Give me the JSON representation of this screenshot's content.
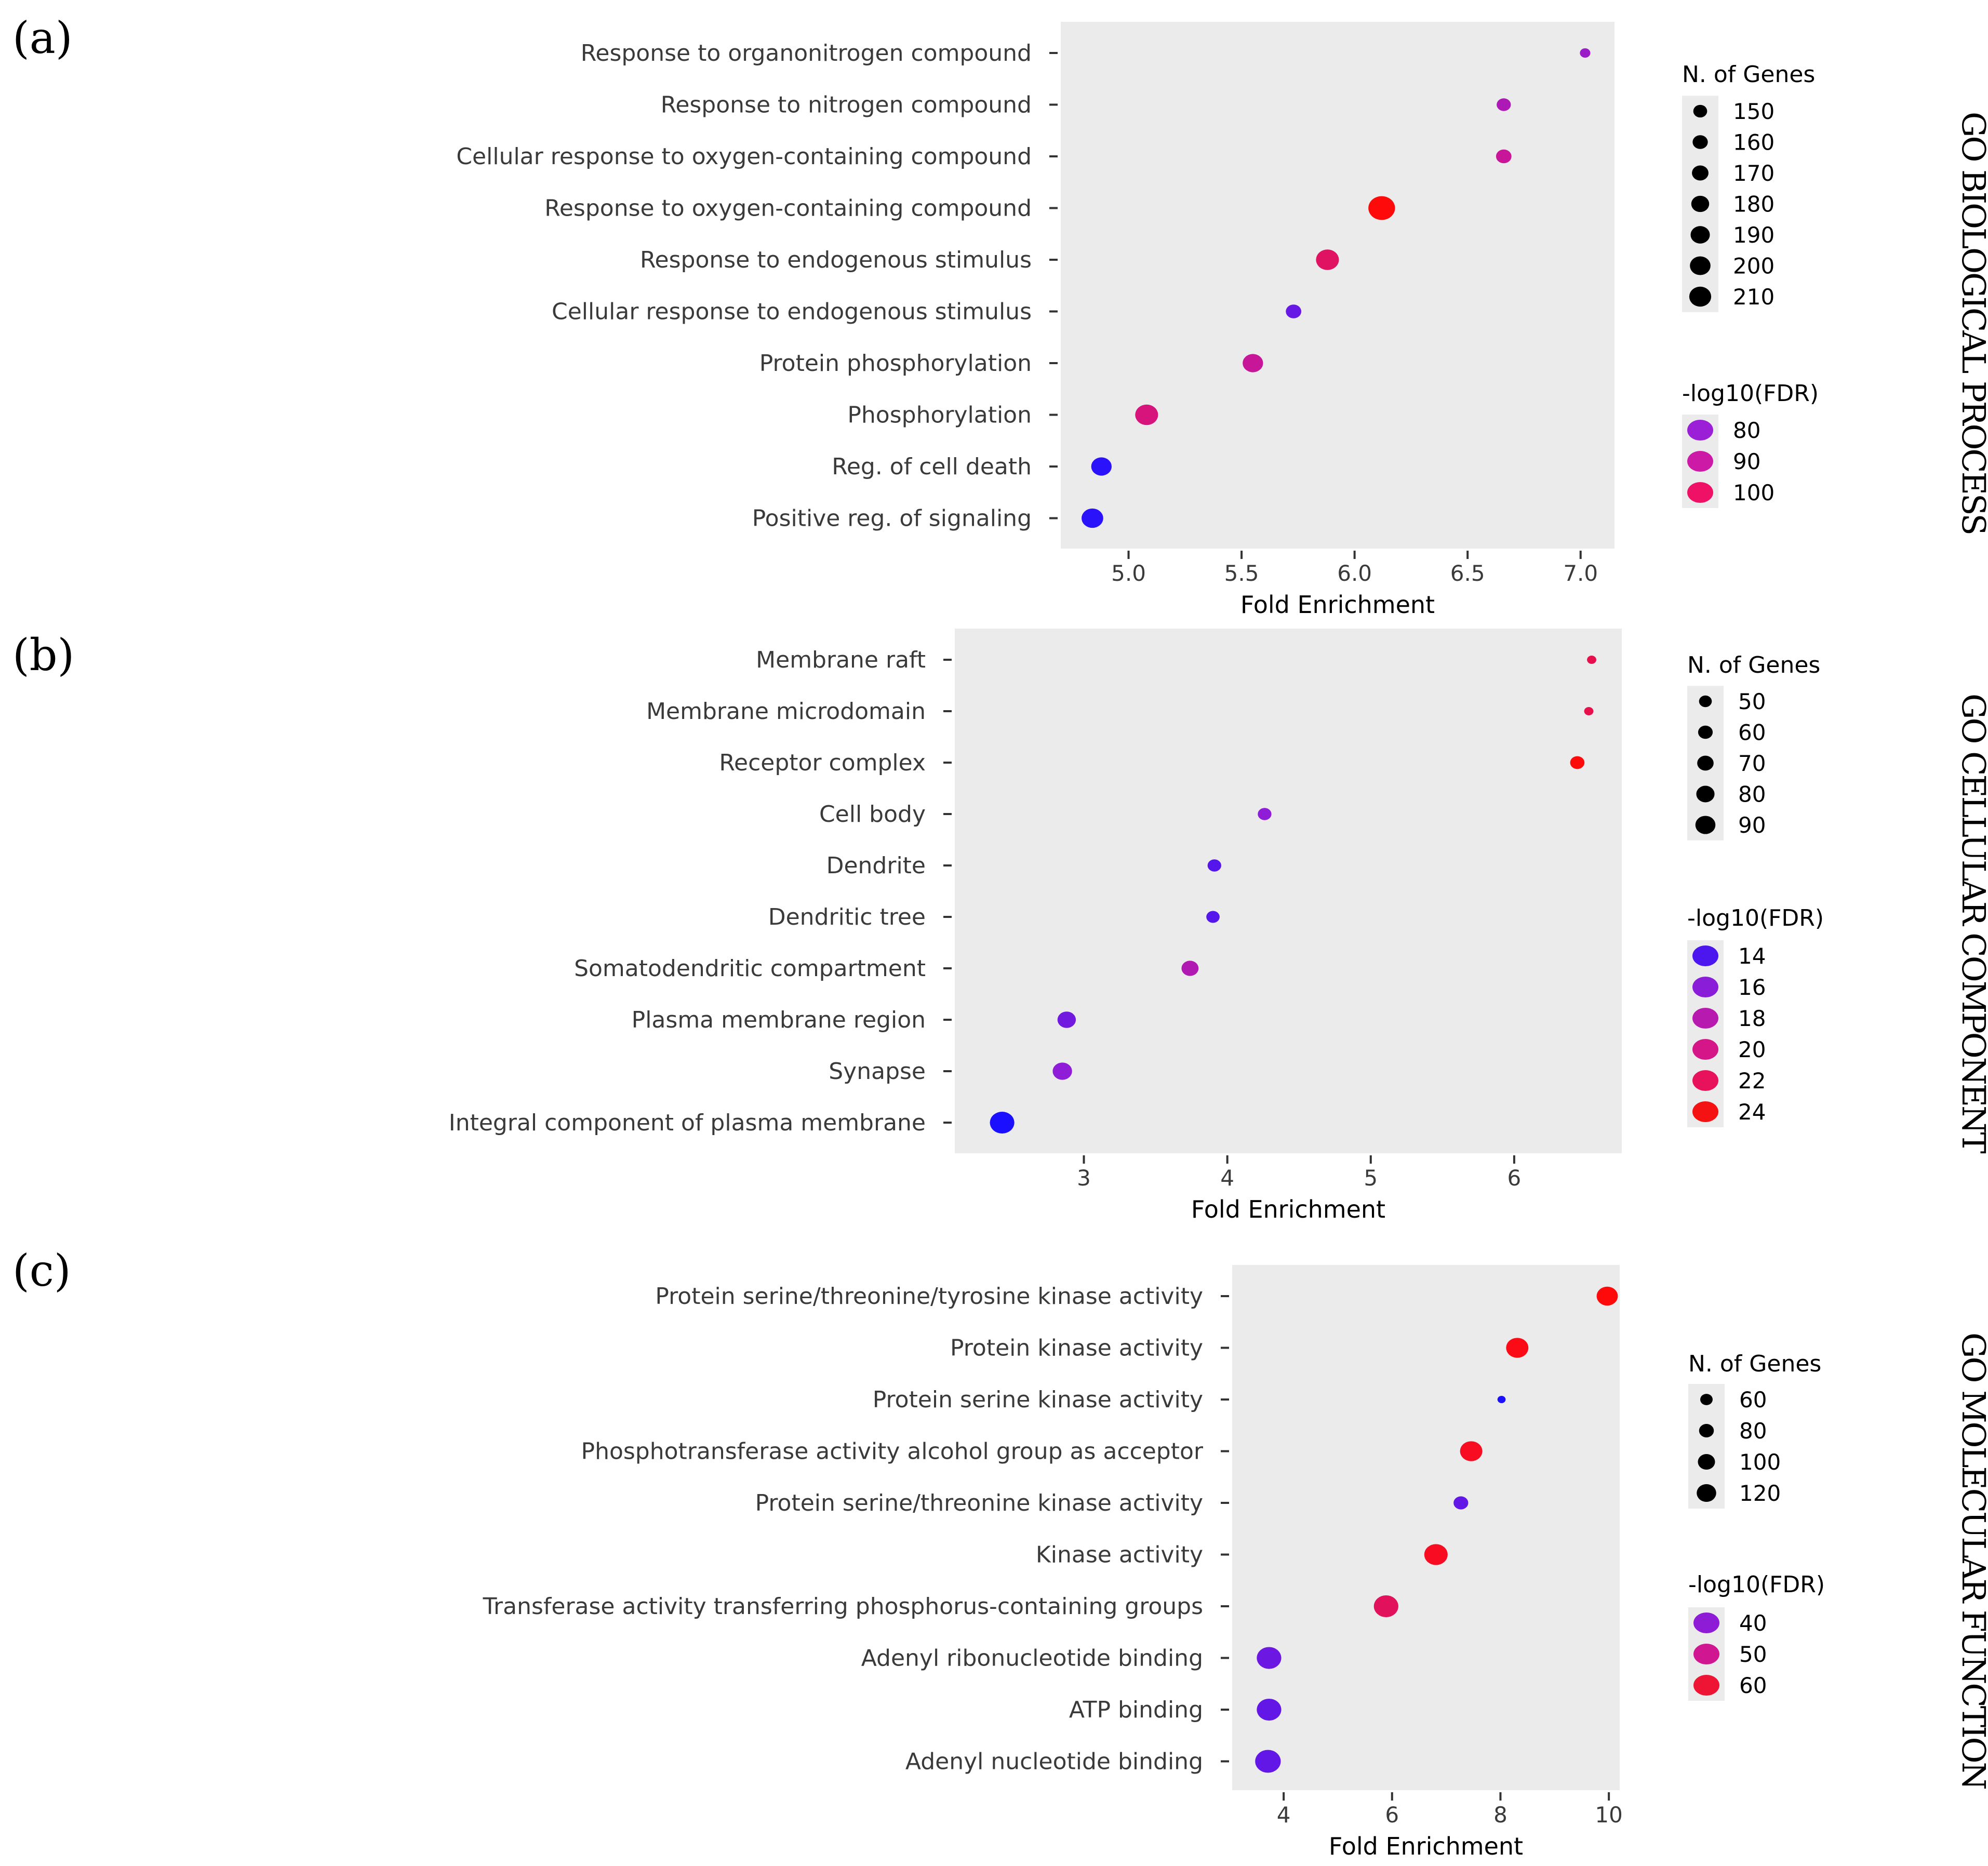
{
  "chart_data": [
    {
      "type": "scatter",
      "panel_label": "(a)",
      "side_title": "GO BIOLOGICAL PROCESS",
      "xlabel": "Fold Enrichment",
      "xlim": [
        4.7,
        7.15
      ],
      "xticks": [
        5.0,
        5.5,
        6.0,
        6.5,
        7.0
      ],
      "xtick_labels": [
        "5.0",
        "5.5",
        "6.0",
        "6.5",
        "7.0"
      ],
      "categories": [
        "Response to organonitrogen compound",
        "Response to nitrogen compound",
        "Cellular response to oxygen-containing compound",
        "Response to oxygen-containing compound",
        "Response to endogenous stimulus",
        "Cellular response to endogenous stimulus",
        "Protein phosphorylation",
        "Phosphorylation",
        "Reg. of cell death",
        "Positive reg. of signaling"
      ],
      "fold_enrichment": [
        7.02,
        6.66,
        6.66,
        6.12,
        5.88,
        5.73,
        5.55,
        5.08,
        4.88,
        4.84
      ],
      "n_genes": [
        140,
        155,
        160,
        205,
        190,
        160,
        180,
        190,
        180,
        185
      ],
      "neg_log10_fdr": [
        78,
        82,
        88,
        105,
        95,
        70,
        88,
        92,
        62,
        62
      ],
      "size_legend": {
        "title": "N. of Genes",
        "labels": [
          "150",
          "160",
          "170",
          "180",
          "190",
          "200",
          "210"
        ],
        "values": [
          150,
          160,
          170,
          180,
          190,
          200,
          210
        ]
      },
      "color_legend": {
        "title": "-log10(FDR)",
        "labels": [
          "80",
          "90",
          "100"
        ],
        "values": [
          80,
          90,
          100
        ],
        "colors": [
          "#9a1fd6",
          "#cc1aa6",
          "#ee1166"
        ]
      },
      "color_scale": {
        "min": 60,
        "max": 105
      },
      "size_scale": {
        "min": 140,
        "max": 210
      }
    },
    {
      "type": "scatter",
      "panel_label": "(b)",
      "side_title": "GO CELLULAR COMPONENT",
      "xlabel": "Fold Enrichment",
      "xlim": [
        2.1,
        6.75
      ],
      "xticks": [
        3,
        4,
        5,
        6
      ],
      "xtick_labels": [
        "3",
        "4",
        "5",
        "6"
      ],
      "categories": [
        "Membrane raft",
        "Membrane microdomain",
        "Receptor complex",
        "Cell body",
        "Dendrite",
        "Dendritic tree",
        "Somatodendritic compartment",
        "Plasma membrane region",
        "Synapse",
        "Integral component of plasma membrane"
      ],
      "fold_enrichment": [
        6.54,
        6.52,
        6.44,
        4.26,
        3.91,
        3.9,
        3.74,
        2.88,
        2.85,
        2.43
      ],
      "n_genes": [
        45,
        45,
        60,
        58,
        58,
        57,
        68,
        72,
        75,
        90
      ],
      "neg_log10_fdr": [
        22,
        22,
        24,
        16,
        14,
        14,
        18,
        15,
        16,
        12
      ],
      "size_legend": {
        "title": "N. of Genes",
        "labels": [
          "50",
          "60",
          "70",
          "80",
          "90"
        ],
        "values": [
          50,
          60,
          70,
          80,
          90
        ]
      },
      "color_legend": {
        "title": "-log10(FDR)",
        "labels": [
          "14",
          "16",
          "18",
          "20",
          "22",
          "24"
        ],
        "values": [
          14,
          16,
          18,
          20,
          22,
          24
        ],
        "colors": [
          "#4b17ee",
          "#8a1dd8",
          "#b61aae",
          "#d41688",
          "#e8125c",
          "#f51212"
        ]
      },
      "color_scale": {
        "min": 12,
        "max": 24
      },
      "size_scale": {
        "min": 45,
        "max": 90
      }
    },
    {
      "type": "scatter",
      "panel_label": "(c)",
      "side_title": "GO MOLECULAR FUNCTION",
      "xlabel": "Fold Enrichment",
      "xlim": [
        3.05,
        10.2
      ],
      "xticks": [
        4,
        6,
        8,
        10
      ],
      "xtick_labels": [
        "4",
        "6",
        "8",
        "10"
      ],
      "categories": [
        "Protein serine/threonine/tyrosine kinase activity",
        "Protein kinase activity",
        "Protein serine kinase activity",
        "Phosphotransferase activity alcohol group as acceptor",
        "Protein serine/threonine kinase activity",
        "Kinase activity",
        "Transferase activity transferring phosphorus-containing groups",
        "Adenyl ribonucleotide binding",
        "ATP binding",
        "Adenyl nucleotide binding"
      ],
      "fold_enrichment": [
        9.97,
        8.31,
        8.02,
        7.46,
        7.27,
        6.81,
        5.89,
        3.73,
        3.73,
        3.71
      ],
      "n_genes": [
        110,
        115,
        50,
        115,
        80,
        120,
        125,
        125,
        125,
        130
      ],
      "neg_log10_fdr": [
        64,
        63,
        30,
        62,
        37,
        62,
        57,
        38,
        37,
        37
      ],
      "size_legend": {
        "title": "N. of Genes",
        "labels": [
          "60",
          "80",
          "100",
          "120"
        ],
        "values": [
          60,
          80,
          100,
          120
        ]
      },
      "color_legend": {
        "title": "-log10(FDR)",
        "labels": [
          "40",
          "50",
          "60"
        ],
        "values": [
          40,
          50,
          60
        ],
        "colors": [
          "#8e1cd6",
          "#d01690",
          "#ee1433"
        ]
      },
      "color_scale": {
        "min": 30,
        "max": 64
      },
      "size_scale": {
        "min": 50,
        "max": 130
      }
    }
  ]
}
